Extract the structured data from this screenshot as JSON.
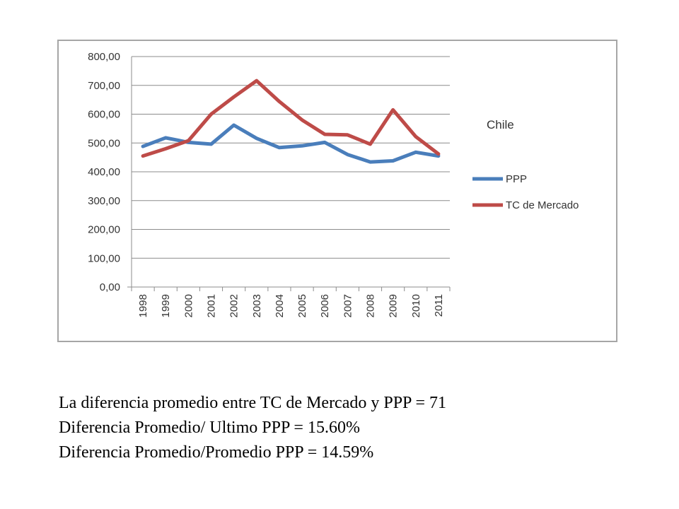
{
  "chart_data": {
    "type": "line",
    "title": "Chile",
    "categories": [
      "1998",
      "1999",
      "2000",
      "2001",
      "2002",
      "2003",
      "2004",
      "2005",
      "2006",
      "2007",
      "2008",
      "2009",
      "2010",
      "2011"
    ],
    "series": [
      {
        "name": "PPP",
        "color": "#4a7ebb",
        "values": [
          488,
          518,
          502,
          496,
          562,
          516,
          484,
          490,
          502,
          460,
          434,
          438,
          468,
          455
        ]
      },
      {
        "name": "TC de Mercado",
        "color": "#be4b48",
        "values": [
          455,
          480,
          508,
          600,
          660,
          716,
          644,
          580,
          530,
          528,
          496,
          615,
          522,
          462
        ]
      }
    ],
    "ylim": [
      0,
      800
    ],
    "yticks": [
      "0,00",
      "100,00",
      "200,00",
      "300,00",
      "400,00",
      "500,00",
      "600,00",
      "700,00",
      "800,00"
    ],
    "grid": true,
    "legend_position": "right"
  },
  "notes": [
    "La diferencia promedio entre TC de Mercado y PPP = 71",
    "Diferencia Promedio/ Ultimo PPP = 15.60%",
    "Diferencia Promedio/Promedio PPP = 14.59%"
  ]
}
